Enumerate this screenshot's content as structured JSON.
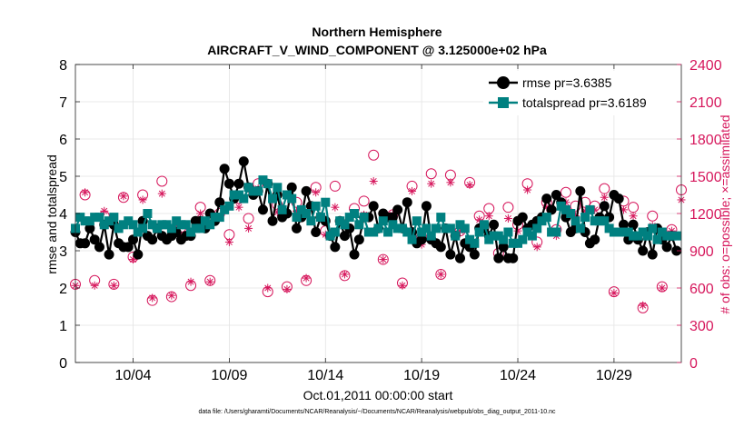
{
  "chart_data": {
    "type": "line",
    "title": "Northern Hemisphere",
    "subtitle": "AIRCRAFT_V_WIND_COMPONENT @ 3.125000e+02 hPa",
    "xlabel": "Oct.01,2011 00:00:00 start",
    "ylabel": "rmse and totalspread",
    "ylabel_right": "# of obs: o=possible; ×=assimilated",
    "xlim": [
      1,
      32.5
    ],
    "ylim": [
      0,
      8
    ],
    "ylim_right": [
      0,
      2400
    ],
    "x_ticks": [
      4,
      9,
      14,
      19,
      24,
      29
    ],
    "x_tick_labels": [
      "10/04",
      "10/09",
      "10/14",
      "10/19",
      "10/24",
      "10/29"
    ],
    "y_ticks": [
      "0",
      "1",
      "2",
      "3",
      "4",
      "5",
      "6",
      "7",
      "8"
    ],
    "y_ticks_right": [
      "0",
      "300",
      "600",
      "900",
      "1200",
      "1500",
      "1800",
      "2100",
      "2400"
    ],
    "grid": true,
    "legend_position": "top-right",
    "x": [
      1.0,
      1.25,
      1.5,
      1.75,
      2.0,
      2.25,
      2.5,
      2.75,
      3.0,
      3.25,
      3.5,
      3.75,
      4.0,
      4.25,
      4.5,
      4.75,
      5.0,
      5.25,
      5.5,
      5.75,
      6.0,
      6.25,
      6.5,
      6.75,
      7.0,
      7.25,
      7.5,
      7.75,
      8.0,
      8.25,
      8.5,
      8.75,
      9.0,
      9.25,
      9.5,
      9.75,
      10.0,
      10.25,
      10.5,
      10.75,
      11.0,
      11.25,
      11.5,
      11.75,
      12.0,
      12.25,
      12.5,
      12.75,
      13.0,
      13.25,
      13.5,
      13.75,
      14.0,
      14.25,
      14.5,
      14.75,
      15.0,
      15.25,
      15.5,
      15.75,
      16.0,
      16.25,
      16.5,
      16.75,
      17.0,
      17.25,
      17.5,
      17.75,
      18.0,
      18.25,
      18.5,
      18.75,
      19.0,
      19.25,
      19.5,
      19.75,
      20.0,
      20.25,
      20.5,
      20.75,
      21.0,
      21.25,
      21.5,
      21.75,
      22.0,
      22.25,
      22.5,
      22.75,
      23.0,
      23.25,
      23.5,
      23.75,
      24.0,
      24.25,
      24.5,
      24.75,
      25.0,
      25.25,
      25.5,
      25.75,
      26.0,
      26.25,
      26.5,
      26.75,
      27.0,
      27.25,
      27.5,
      27.75,
      28.0,
      28.25,
      28.5,
      28.75,
      29.0,
      29.25,
      29.5,
      29.75,
      30.0,
      30.25,
      30.5,
      30.75,
      31.0,
      31.25,
      31.5,
      31.75,
      32.0,
      32.25
    ],
    "series": [
      {
        "name": "rmse",
        "legend": "rmse pr=3.6385",
        "color": "#000000",
        "marker": "circle",
        "values": [
          3.5,
          3.2,
          3.2,
          3.6,
          3.3,
          3.1,
          3.7,
          2.9,
          3.7,
          3.2,
          3.1,
          3.1,
          3.3,
          2.9,
          3.8,
          3.4,
          3.3,
          3.6,
          3.4,
          3.3,
          3.4,
          3.5,
          3.3,
          3.4,
          3.4,
          3.8,
          3.8,
          3.6,
          4.0,
          3.8,
          4.3,
          5.2,
          4.8,
          4.4,
          4.8,
          5.4,
          4.7,
          4.5,
          4.6,
          4.1,
          4.8,
          3.8,
          4.5,
          3.9,
          4.0,
          4.7,
          3.6,
          3.9,
          4.6,
          4.2,
          3.5,
          3.9,
          3.8,
          3.4,
          3.1,
          3.8,
          3.4,
          3.6,
          2.9,
          3.3,
          3.9,
          3.9,
          4.2,
          3.6,
          4.0,
          3.9,
          3.9,
          4.1,
          3.6,
          4.3,
          3.5,
          3.2,
          3.3,
          4.2,
          3.3,
          3.2,
          3.1,
          3.6,
          2.9,
          3.4,
          2.8,
          3.2,
          3.1,
          2.9,
          3.6,
          3.6,
          3.4,
          3.7,
          2.8,
          3.1,
          2.8,
          2.8,
          3.8,
          3.9,
          3.6,
          3.7,
          3.8,
          3.9,
          4.4,
          4.1,
          4.5,
          4.3,
          3.9,
          3.5,
          3.6,
          4.6,
          3.5,
          3.2,
          3.3,
          3.9,
          4.2,
          3.9,
          4.5,
          4.4,
          3.7,
          3.3,
          3.7,
          3.3,
          3.0,
          3.5,
          2.9,
          3.6,
          3.3,
          3.1,
          3.4,
          3.0
        ]
      },
      {
        "name": "totalspread",
        "legend": "totalspread pr=3.6189",
        "color": "#008080",
        "marker": "square",
        "values": [
          3.6,
          3.9,
          3.8,
          3.8,
          3.9,
          3.9,
          3.7,
          3.8,
          3.9,
          3.6,
          3.7,
          3.8,
          3.7,
          3.5,
          3.6,
          4.0,
          3.7,
          3.6,
          3.7,
          3.7,
          3.6,
          3.8,
          3.7,
          3.7,
          3.5,
          3.6,
          3.6,
          3.8,
          3.7,
          3.9,
          3.9,
          4.1,
          4.2,
          4.5,
          4.5,
          4.4,
          4.7,
          4.6,
          4.6,
          4.9,
          4.8,
          4.4,
          4.7,
          4.1,
          4.5,
          4.4,
          3.9,
          4.1,
          4.0,
          3.8,
          4.2,
          3.9,
          4.3,
          3.4,
          3.5,
          3.8,
          3.7,
          3.9,
          4.0,
          3.7,
          3.9,
          3.5,
          3.5,
          3.6,
          3.8,
          3.5,
          3.7,
          3.6,
          3.6,
          3.5,
          3.3,
          3.8,
          3.5,
          3.6,
          3.4,
          3.6,
          3.9,
          3.6,
          3.6,
          3.4,
          3.7,
          3.6,
          3.3,
          3.2,
          3.5,
          3.7,
          3.3,
          3.4,
          3.4,
          3.3,
          3.5,
          3.2,
          3.2,
          3.3,
          3.5,
          3.4,
          3.6,
          3.8,
          3.9,
          3.5,
          3.5,
          4.2,
          4.1,
          4.0,
          3.8,
          3.6,
          3.9,
          4.1,
          3.8,
          3.8,
          3.8,
          3.6,
          3.5,
          3.5,
          3.5,
          3.5,
          3.4,
          3.4,
          3.5,
          3.4,
          3.6,
          3.3,
          3.5,
          3.4,
          3.4,
          3.4
        ]
      }
    ],
    "obs_series": {
      "color": "#d6175c",
      "x": [
        1,
        1.5,
        2,
        2.5,
        3,
        3.5,
        4,
        4.5,
        5,
        5.5,
        6,
        6.5,
        7,
        7.5,
        8,
        8.5,
        9,
        9.5,
        10,
        10.5,
        11,
        11.5,
        12,
        12.5,
        13,
        13.5,
        14,
        14.5,
        15,
        15.5,
        16,
        16.5,
        17,
        17.5,
        18,
        18.5,
        19,
        19.5,
        20,
        20.5,
        21,
        21.5,
        22,
        22.5,
        23,
        23.5,
        24,
        24.5,
        25,
        25.5,
        26,
        26.5,
        27,
        27.5,
        28,
        28.5,
        29,
        29.5,
        30,
        30.5,
        31,
        31.5,
        32,
        32.5
      ],
      "possible": [
        630,
        1350,
        660,
        1180,
        630,
        1330,
        850,
        1350,
        500,
        1460,
        530,
        1090,
        620,
        1250,
        660,
        1200,
        1030,
        1320,
        1160,
        1440,
        570,
        1270,
        610,
        1290,
        660,
        1410,
        1060,
        1420,
        700,
        1240,
        1300,
        1670,
        830,
        1190,
        640,
        1420,
        1010,
        1520,
        710,
        1510,
        1060,
        1450,
        1180,
        1240,
        880,
        1250,
        1110,
        1440,
        970,
        1290,
        1070,
        1370,
        1260,
        1290,
        1260,
        1400,
        570,
        1300,
        1250,
        440,
        1180,
        610,
        1070,
        1390
      ],
      "assimilated": [
        620,
        1370,
        620,
        1220,
        620,
        1340,
        830,
        1310,
        520,
        1360,
        540,
        1020,
        650,
        1200,
        650,
        1170,
        970,
        1250,
        1080,
        1400,
        600,
        1210,
        590,
        1220,
        680,
        1370,
        1030,
        1250,
        710,
        1200,
        1190,
        1460,
        830,
        1190,
        620,
        1380,
        950,
        1440,
        710,
        1450,
        1060,
        1430,
        1150,
        1180,
        850,
        1160,
        1060,
        1390,
        930,
        1250,
        1020,
        1290,
        1180,
        1220,
        1230,
        1330,
        560,
        1230,
        1180,
        460,
        1100,
        600,
        1060,
        1310
      ]
    }
  },
  "footer": "data file: /Users/gharamti/Documents/NCAR/Reanalysis/~/Documents/NCAR/Reanalysis/webpub/obs_diag_output_2011-10.nc"
}
